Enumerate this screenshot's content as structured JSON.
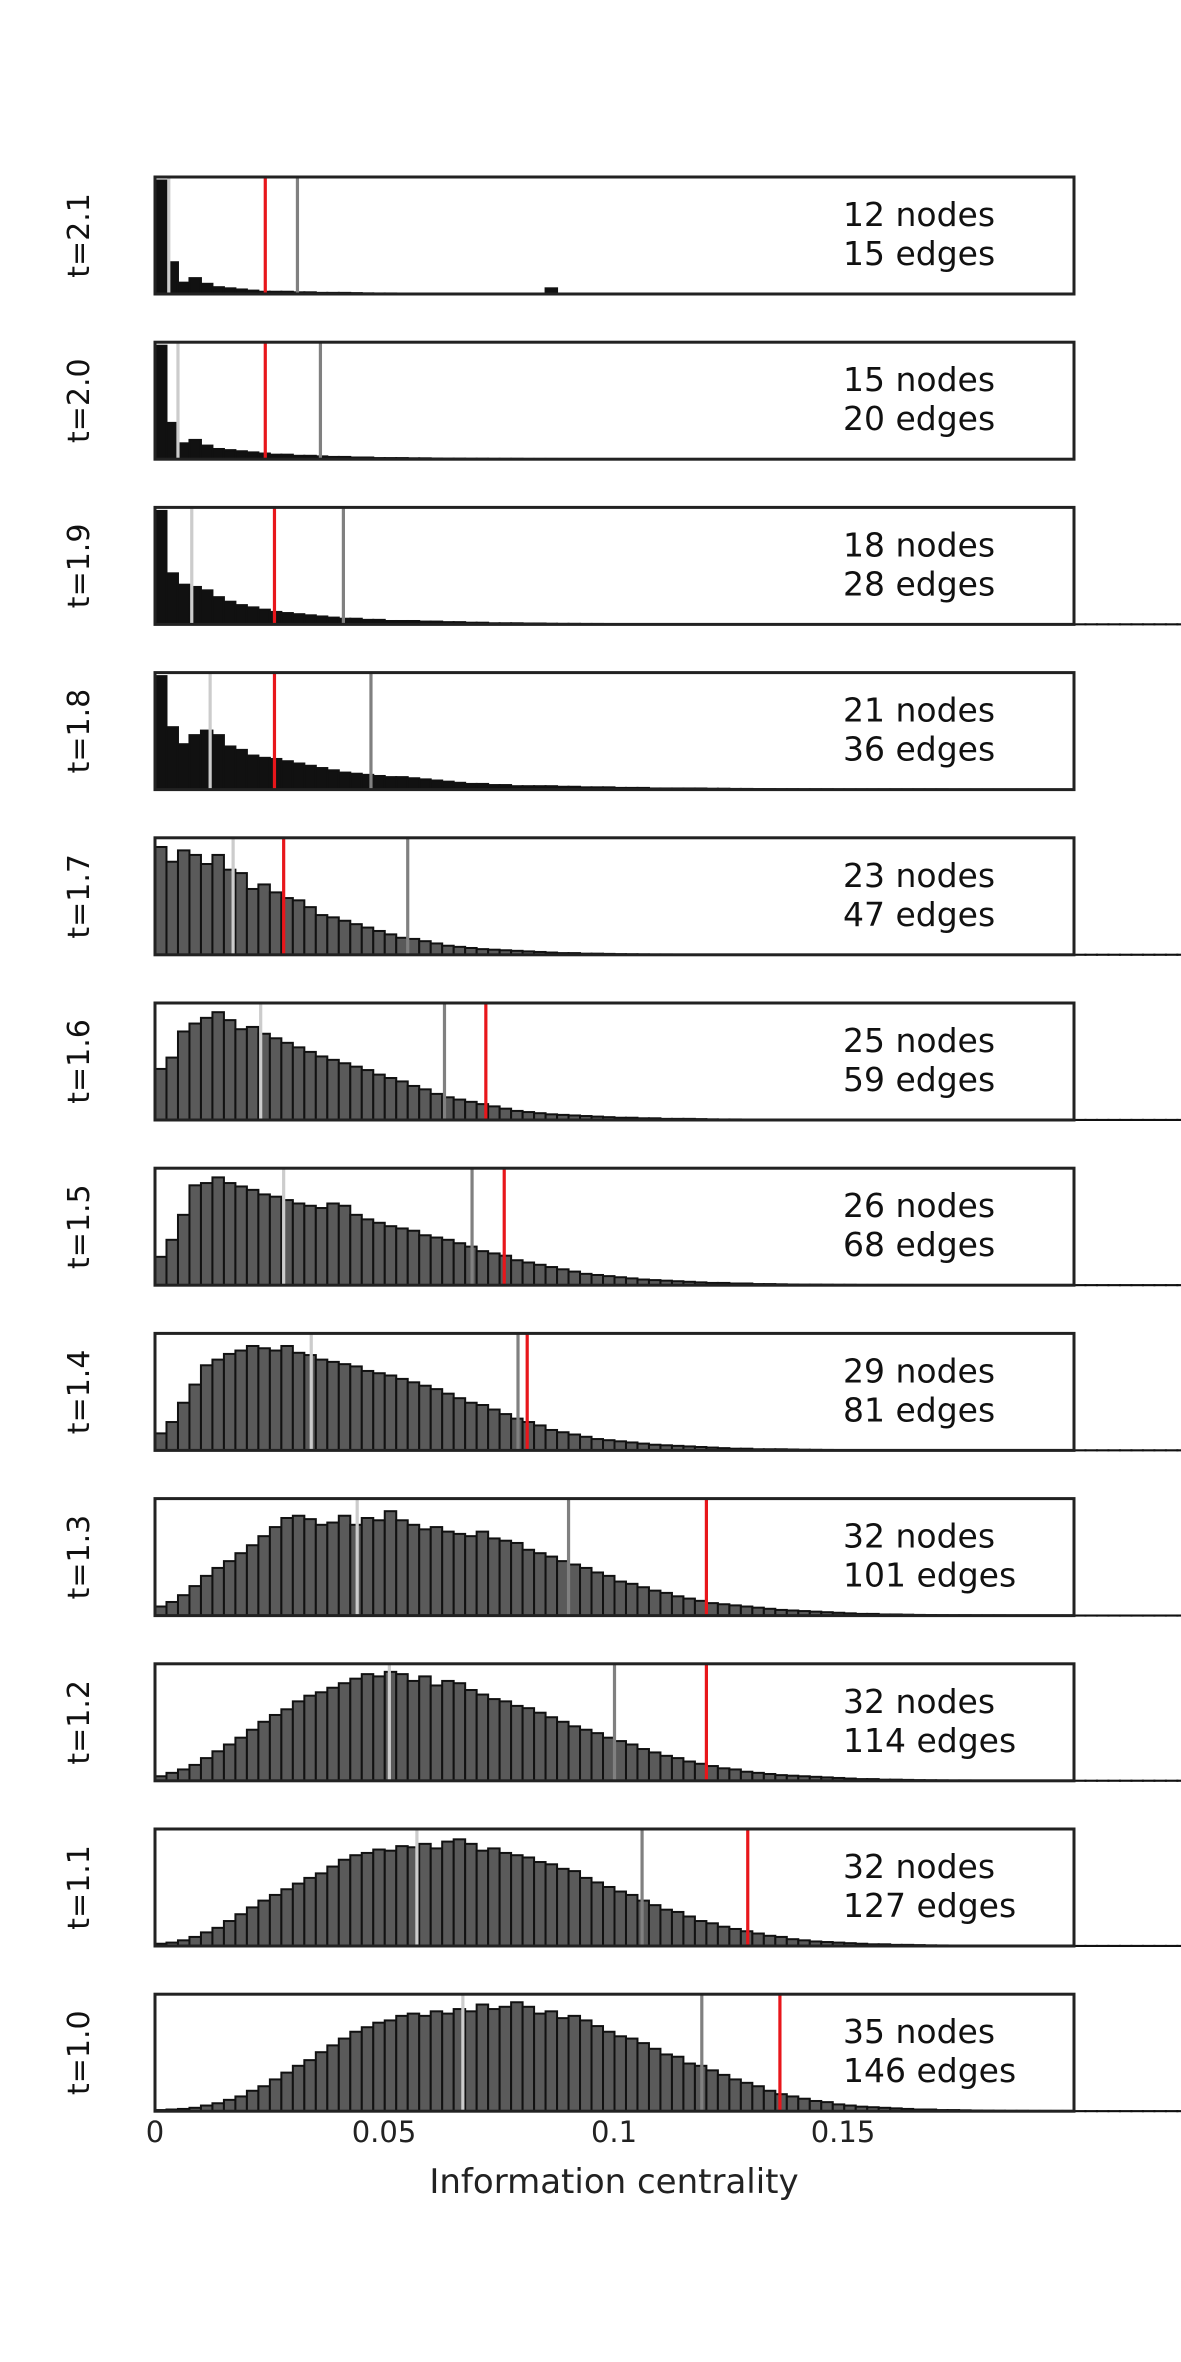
{
  "chart_data": {
    "type": "bar",
    "subtype": "stacked histograms (small multiples)",
    "xlabel": "Information centrality",
    "xlim": [
      0,
      0.2
    ],
    "x_ticks": [
      0,
      0.05,
      0.1,
      0.15
    ],
    "x_tick_labels": [
      "0",
      "0.05",
      "0.1",
      "0.15"
    ],
    "bin_width": 0.0025,
    "colors": {
      "bar_fill_sparse": "#111111",
      "bar_fill": "#5a5a5a",
      "bar_edge": "#111111",
      "light_marker": "#cccccc",
      "gray_marker": "#808080",
      "red_marker": "#e8161b",
      "frame": "#222222"
    },
    "panels": [
      {
        "label": "t=2.1",
        "nodes_text": "12 nodes",
        "edges_text": "15 edges",
        "light_line": 0.003,
        "gray_line": 0.031,
        "red_line": 0.024,
        "sparse": true,
        "counts": [
          100,
          28,
          10,
          14,
          9,
          6,
          5,
          4,
          3,
          2,
          2,
          2,
          1.5,
          1.5,
          1,
          1,
          1,
          0.8,
          0.6,
          0.5,
          0.5,
          0.4,
          0.3,
          0.3,
          0.2,
          0.2,
          0,
          0,
          0,
          0,
          0,
          0,
          0,
          0,
          5
        ]
      },
      {
        "label": "t=2.0",
        "nodes_text": "15 nodes",
        "edges_text": "20 edges",
        "light_line": 0.005,
        "gray_line": 0.036,
        "red_line": 0.024,
        "sparse": true,
        "counts": [
          100,
          32,
          14,
          17,
          12,
          9,
          8,
          7,
          6,
          5,
          4,
          4,
          3,
          3,
          2.5,
          2,
          2,
          1.5,
          1.5,
          1,
          1,
          1,
          0.8,
          0.8,
          0.6,
          0.5,
          0.5,
          0.4,
          0.4,
          0.3,
          0.3,
          0.3,
          0.2,
          0.2,
          0.2,
          0.1
        ]
      },
      {
        "label": "t=1.9",
        "nodes_text": "18 nodes",
        "edges_text": "28 edges",
        "light_line": 0.008,
        "gray_line": 0.041,
        "red_line": 0.026,
        "sparse": true,
        "counts": [
          100,
          45,
          35,
          33,
          30,
          24,
          20,
          17,
          15,
          13,
          11,
          10,
          9,
          8,
          7,
          6,
          5,
          5,
          4,
          4,
          3,
          3,
          3,
          2.5,
          2.5,
          2,
          2,
          1.5,
          1.5,
          1,
          1,
          1,
          0.8,
          0.8,
          0.6,
          0.5,
          0.5,
          0.4,
          0.4,
          0.3,
          0.3,
          0.3,
          0.2,
          0.2,
          0.2,
          0.2,
          0.1,
          0.1,
          0.1,
          0.1,
          0.1,
          0.1,
          0.1,
          0.1,
          0.1,
          0.1,
          0.1,
          0.1,
          0.1,
          0.1,
          0.1,
          0.1,
          0.1,
          0.1,
          0.1,
          0.1,
          0.1,
          0.1,
          0.1,
          0.1,
          0.1,
          0.1,
          0.1,
          0.1,
          0.1,
          0.1,
          0.1,
          0.1,
          0.1,
          0.1,
          0.1,
          0.1,
          0.1,
          0.1,
          0.1,
          0.1,
          0.1,
          0.1,
          0.1,
          0.1,
          0.1,
          0.1,
          0.1,
          0.1,
          0.1,
          0.1,
          0.1,
          0.1,
          0.1,
          0.1,
          0.1
        ]
      },
      {
        "label": "t=1.8",
        "nodes_text": "21 nodes",
        "edges_text": "36 edges",
        "light_line": 0.012,
        "gray_line": 0.047,
        "red_line": 0.026,
        "sparse": true,
        "counts": [
          100,
          55,
          40,
          48,
          52,
          48,
          38,
          35,
          30,
          28,
          27,
          25,
          23,
          21,
          19,
          17,
          15,
          14,
          13,
          12,
          11,
          11,
          10,
          9,
          8,
          7,
          6,
          5,
          5,
          4,
          4,
          3,
          3,
          3,
          3,
          2.5,
          2.5,
          2,
          2,
          2,
          1.5,
          1.5,
          1.5,
          1,
          1,
          1,
          1,
          1,
          0.8,
          0.8,
          0.6,
          0.6,
          0.5,
          0.5,
          0.4,
          0.4,
          0.3,
          0.3,
          0.3,
          0.2,
          0.2,
          0.2,
          0.2,
          0.2,
          0.2,
          0.2,
          0.2,
          0.2,
          0.2,
          0.1,
          0.1,
          0.1,
          0.1,
          0.1,
          0.1,
          0.1,
          0.1,
          0.1
        ]
      },
      {
        "label": "t=1.7",
        "nodes_text": "23 nodes",
        "edges_text": "47 edges",
        "light_line": 0.017,
        "gray_line": 0.055,
        "red_line": 0.028,
        "sparse": false,
        "counts": [
          95,
          82,
          92,
          88,
          80,
          88,
          75,
          72,
          58,
          62,
          55,
          50,
          48,
          42,
          35,
          33,
          30,
          27,
          24,
          21,
          18,
          15,
          14,
          12,
          10,
          8,
          7,
          6,
          5,
          4.5,
          4,
          3.5,
          3,
          2.5,
          2,
          1.5,
          1.5,
          1,
          1,
          0.8,
          0.6,
          0.5,
          0.4,
          0.3,
          0.3,
          0.2,
          0.2,
          0.2,
          0.2,
          0.2,
          0.2,
          0.1,
          0.1,
          0.1,
          0.1,
          0.1,
          0.1,
          0.1,
          0.1,
          0.1,
          0.1,
          0.1,
          0.1,
          0.1,
          0.1,
          0.1,
          0.1,
          0.1,
          0.1,
          0.1,
          0.1,
          0.1,
          0.1,
          0.1,
          0.1,
          0.1,
          0.1,
          0.1,
          0.1,
          0.1,
          0.1,
          0.1,
          0.1,
          0.1,
          0.1,
          0.1,
          0.1,
          0.1,
          0.1,
          0.1,
          0.1,
          0.1,
          0.1,
          0.1,
          0.1,
          0.1,
          0.1,
          0.1,
          0.1,
          0.1
        ]
      },
      {
        "label": "t=1.6",
        "nodes_text": "25 nodes",
        "edges_text": "59 edges",
        "light_line": 0.023,
        "gray_line": 0.063,
        "red_line": 0.072,
        "sparse": false,
        "counts": [
          45,
          55,
          78,
          85,
          90,
          95,
          88,
          80,
          82,
          76,
          72,
          68,
          64,
          60,
          56,
          53,
          50,
          47,
          44,
          40,
          37,
          34,
          30,
          27,
          23,
          20,
          18,
          16,
          14,
          12,
          10,
          8,
          7,
          6,
          5,
          4.5,
          4,
          3.5,
          3,
          2.5,
          2,
          2,
          1.5,
          1.5,
          1,
          1,
          1,
          0.8,
          0.6,
          0.5,
          0.5,
          0.4,
          0.3,
          0.3,
          0.3,
          0.2,
          0.2,
          0.2,
          0.2,
          0.2,
          0.2,
          0.2,
          0.1,
          0.1,
          0.1,
          0.1,
          0.1,
          0.1,
          0.1,
          0.1,
          0.1,
          0.1,
          0.1,
          0.1,
          0.1,
          0.1,
          0.1,
          0.1,
          0.1,
          0.1,
          0.1,
          0.1,
          0.1,
          0.1,
          0.1,
          0.1,
          0.1,
          0.1,
          0.1,
          0.1,
          0.1,
          0.1,
          0.1,
          0.1,
          0.1,
          0.1,
          0.1,
          0.1,
          0.1,
          0.1
        ]
      },
      {
        "label": "t=1.5",
        "nodes_text": "26 nodes",
        "edges_text": "68 edges",
        "light_line": 0.028,
        "gray_line": 0.069,
        "red_line": 0.076,
        "sparse": false,
        "counts": [
          25,
          40,
          62,
          88,
          90,
          95,
          90,
          87,
          84,
          80,
          78,
          75,
          72,
          70,
          68,
          72,
          70,
          62,
          58,
          55,
          52,
          50,
          48,
          44,
          42,
          40,
          37,
          34,
          30,
          28,
          26,
          22,
          20,
          18,
          16,
          14,
          12,
          10,
          9,
          8,
          7,
          6,
          5,
          4.5,
          4,
          3.5,
          3,
          2.5,
          2,
          2,
          1.5,
          1.5,
          1,
          1,
          0.8,
          0.6,
          0.5,
          0.5,
          0.4,
          0.3,
          0.3,
          0.2,
          0.2,
          0.2,
          0.2,
          0.2,
          0.1,
          0.1,
          0.1,
          0.1,
          0.1,
          0.1,
          0.1,
          0.1,
          0.1,
          0.1,
          0.1,
          0.1,
          0.1,
          0.1,
          0.1,
          0.1,
          0.1,
          0.1,
          0.1,
          0.1,
          0.1,
          0.1,
          0.1,
          0.1,
          0.1,
          0.1,
          0.1,
          0.1,
          0.1,
          0.1,
          0.1,
          0.1,
          0.1,
          0.1
        ]
      },
      {
        "label": "t=1.4",
        "nodes_text": "29 nodes",
        "edges_text": "81 edges",
        "light_line": 0.034,
        "gray_line": 0.079,
        "red_line": 0.081,
        "sparse": false,
        "counts": [
          15,
          25,
          42,
          58,
          75,
          80,
          85,
          88,
          92,
          90,
          88,
          92,
          86,
          84,
          80,
          78,
          76,
          74,
          70,
          68,
          66,
          63,
          60,
          57,
          54,
          50,
          46,
          42,
          40,
          36,
          32,
          28,
          25,
          22,
          18,
          16,
          14,
          12,
          10,
          9,
          8,
          7,
          6,
          5,
          4.5,
          4,
          3.5,
          3,
          2.5,
          2,
          1.5,
          1.5,
          1,
          1,
          1,
          0.8,
          0.6,
          0.5,
          0.4,
          0.3,
          0.3,
          0.2,
          0.2,
          0.2,
          0.1,
          0.1,
          0.1,
          0.1,
          0.1,
          0.1,
          0.1,
          0.1,
          0.1,
          0.1,
          0.1,
          0.1,
          0.1,
          0.1,
          0.1,
          0.1,
          0.1,
          0.1,
          0.1,
          0.1,
          0.1,
          0.1,
          0.1,
          0.1,
          0.1,
          0.1,
          0.1,
          0.1,
          0.1,
          0.1,
          0.1,
          0.1,
          0.1,
          0.1,
          0.1,
          0.1
        ]
      },
      {
        "label": "t=1.3",
        "nodes_text": "32 nodes",
        "edges_text": "101 edges",
        "light_line": 0.044,
        "gray_line": 0.09,
        "red_line": 0.12,
        "sparse": false,
        "counts": [
          8,
          12,
          18,
          26,
          35,
          42,
          48,
          55,
          62,
          70,
          78,
          86,
          88,
          85,
          80,
          82,
          88,
          80,
          86,
          84,
          92,
          84,
          80,
          76,
          78,
          74,
          72,
          70,
          74,
          68,
          66,
          64,
          58,
          55,
          52,
          48,
          45,
          42,
          38,
          35,
          30,
          28,
          25,
          22,
          20,
          17,
          15,
          13,
          11,
          10,
          9,
          8,
          7,
          6,
          5,
          4.5,
          4,
          3.5,
          3,
          2.5,
          2,
          1.5,
          1.5,
          1,
          1,
          0.8,
          0.6,
          0.5,
          0.4,
          0.3,
          0.3,
          0.2,
          0.2,
          0.2,
          0.1,
          0.1,
          0.1,
          0.1,
          0.1,
          0.1,
          0.1,
          0.1,
          0.1,
          0.1,
          0.1,
          0.1,
          0.1,
          0.1,
          0.1,
          0.1,
          0.1,
          0.1,
          0.1,
          0.1,
          0.1,
          0.1,
          0.1,
          0.1,
          0.1,
          0.1
        ]
      },
      {
        "label": "t=1.2",
        "nodes_text": "32 nodes",
        "edges_text": "114 edges",
        "light_line": 0.051,
        "gray_line": 0.1,
        "red_line": 0.12,
        "sparse": false,
        "counts": [
          4,
          7,
          10,
          14,
          20,
          26,
          32,
          38,
          45,
          52,
          58,
          63,
          70,
          75,
          78,
          82,
          86,
          90,
          94,
          92,
          96,
          94,
          88,
          92,
          84,
          88,
          86,
          80,
          76,
          72,
          70,
          66,
          64,
          60,
          56,
          52,
          48,
          45,
          42,
          38,
          35,
          32,
          28,
          25,
          22,
          20,
          17,
          15,
          13,
          11,
          10,
          8,
          7,
          6,
          5,
          4.5,
          4,
          3.5,
          3,
          2.5,
          2,
          1.5,
          1.5,
          1,
          1,
          0.8,
          0.6,
          0.5,
          0.4,
          0.3,
          0.3,
          0.2,
          0.2,
          0.2,
          0.1,
          0.1,
          0.1,
          0.1,
          0.1,
          0.1,
          0.1,
          0.1,
          0.1,
          0.1,
          0.1,
          0.1,
          0.1,
          0.1,
          0.1,
          0.1,
          0.1,
          0.1,
          0.1,
          0.1,
          0.1,
          0.1,
          0.1,
          0.1,
          0.1,
          0.1
        ]
      },
      {
        "label": "t=1.1",
        "nodes_text": "32 nodes",
        "edges_text": "127 edges",
        "light_line": 0.057,
        "gray_line": 0.106,
        "red_line": 0.129,
        "sparse": false,
        "counts": [
          2,
          3,
          5,
          8,
          12,
          16,
          22,
          28,
          34,
          40,
          45,
          50,
          55,
          60,
          64,
          70,
          76,
          80,
          82,
          85,
          84,
          88,
          87,
          90,
          86,
          92,
          94,
          90,
          84,
          86,
          82,
          80,
          78,
          74,
          72,
          68,
          66,
          60,
          56,
          52,
          48,
          45,
          40,
          36,
          32,
          30,
          26,
          22,
          20,
          17,
          15,
          13,
          11,
          9,
          8,
          6,
          5,
          4,
          3.5,
          3,
          2.5,
          2,
          1.5,
          1.5,
          1,
          1,
          0.8,
          0.6,
          0.5,
          0.4,
          0.3,
          0.3,
          0.2,
          0.2,
          0.2,
          0.1,
          0.1,
          0.1,
          0.1,
          0.1,
          0.1,
          0.1,
          0.1,
          0.1,
          0.1,
          0.1,
          0.1,
          0.1,
          0.1,
          0.1,
          0.1,
          0.1,
          0.1,
          0.1,
          0.1,
          0.1,
          0.1,
          0.1,
          0.1,
          0.1
        ]
      },
      {
        "label": "t=1.0",
        "nodes_text": "35 nodes",
        "edges_text": "146 edges",
        "light_line": 0.067,
        "gray_line": 0.119,
        "red_line": 0.136,
        "sparse": false,
        "counts": [
          1,
          1.5,
          2,
          3,
          5,
          7,
          10,
          13,
          18,
          22,
          28,
          34,
          40,
          45,
          52,
          58,
          64,
          70,
          74,
          78,
          80,
          84,
          86,
          84,
          88,
          86,
          90,
          88,
          94,
          90,
          92,
          96,
          92,
          86,
          88,
          82,
          84,
          80,
          75,
          70,
          66,
          64,
          60,
          55,
          50,
          48,
          42,
          40,
          36,
          32,
          28,
          25,
          22,
          18,
          15,
          13,
          11,
          9,
          8,
          6,
          5,
          4,
          3.5,
          3,
          2.5,
          2,
          1.5,
          1.5,
          1,
          1,
          0.8,
          0.6,
          0.5,
          0.4,
          0.3,
          0.3,
          0.2,
          0.2,
          0.2,
          0.2,
          0.1,
          0.1,
          0.1,
          0.1,
          0.1,
          0.1,
          0.1,
          0.1,
          0.1,
          0.1,
          0.1,
          0.1,
          0.1,
          0.1,
          0.1,
          0.1,
          0.1,
          0.1,
          0.1,
          0.1
        ]
      }
    ]
  }
}
